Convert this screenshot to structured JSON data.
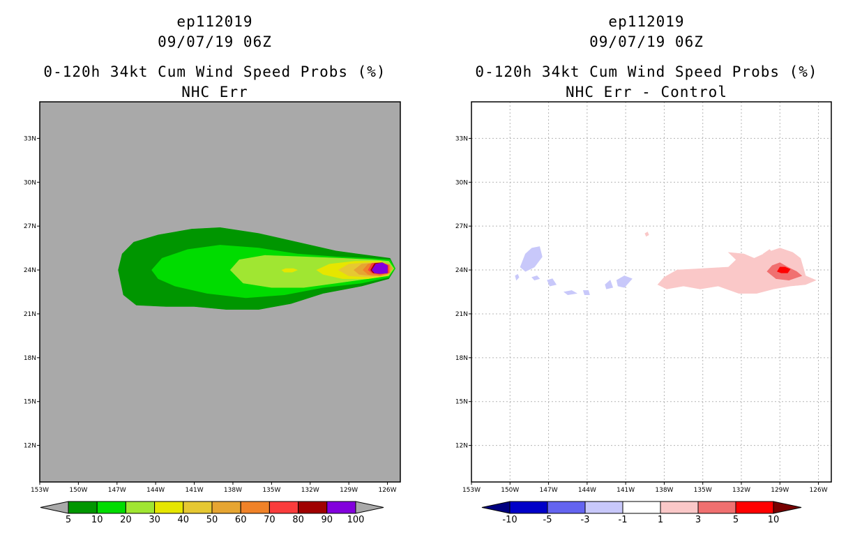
{
  "panels": [
    {
      "header": {
        "storm": "ep112019",
        "time": "09/07/19 06Z",
        "product": "0-120h 34kt Cum Wind Speed Probs (%)",
        "subtitle": "NHC Err"
      }
    },
    {
      "header": {
        "storm": "ep112019",
        "time": "09/07/19 06Z",
        "product": "0-120h 34kt Cum Wind Speed Probs (%)",
        "subtitle": "NHC Err - Control"
      }
    }
  ],
  "chart_data": [
    {
      "type": "heatmap",
      "title": "0-120h 34kt Cum Wind Speed Probs (%)",
      "subtitle": "NHC Err",
      "x_ticks": [
        "153W",
        "150W",
        "147W",
        "144W",
        "141W",
        "138W",
        "135W",
        "132W",
        "129W",
        "126W"
      ],
      "y_ticks": [
        "12N",
        "15N",
        "18N",
        "21N",
        "24N",
        "27N",
        "30N",
        "33N"
      ],
      "xlim_deg_east": [
        -153,
        -125
      ],
      "ylim_deg_north": [
        9.5,
        35.5
      ],
      "grid": false,
      "background": "#a9a9a9",
      "colorbar": {
        "labels": [
          "5",
          "10",
          "20",
          "30",
          "40",
          "50",
          "60",
          "70",
          "80",
          "90",
          "100"
        ],
        "colors": [
          "#009600",
          "#00dc00",
          "#a0e632",
          "#e6e600",
          "#e6c832",
          "#e6a532",
          "#f08228",
          "#fa3c3c",
          "#a00000",
          "#8200dc"
        ],
        "end_colors": [
          "#a9a9a9",
          "#a9a9a9"
        ]
      },
      "contours": [
        {
          "level": 5,
          "color": "#009600",
          "points": [
            [
              -146.9,
              24.0
            ],
            [
              -146.6,
              25.1
            ],
            [
              -145.7,
              25.9
            ],
            [
              -143.8,
              26.4
            ],
            [
              -141.2,
              26.8
            ],
            [
              -139.0,
              26.9
            ],
            [
              -136.0,
              26.5
            ],
            [
              -133.0,
              25.9
            ],
            [
              -130.0,
              25.3
            ],
            [
              -127.5,
              25.0
            ],
            [
              -125.8,
              24.8
            ],
            [
              -125.4,
              24.1
            ],
            [
              -125.9,
              23.4
            ],
            [
              -128.0,
              22.9
            ],
            [
              -131.0,
              22.4
            ],
            [
              -133.5,
              21.7
            ],
            [
              -136.0,
              21.3
            ],
            [
              -138.5,
              21.3
            ],
            [
              -141.0,
              21.5
            ],
            [
              -143.2,
              21.5
            ],
            [
              -145.5,
              21.6
            ],
            [
              -146.5,
              22.3
            ]
          ]
        },
        {
          "level": 10,
          "color": "#00dc00",
          "points": [
            [
              -144.3,
              24.0
            ],
            [
              -143.5,
              24.8
            ],
            [
              -141.5,
              25.4
            ],
            [
              -139.0,
              25.7
            ],
            [
              -136.0,
              25.5
            ],
            [
              -133.0,
              25.1
            ],
            [
              -130.0,
              24.9
            ],
            [
              -127.5,
              24.8
            ],
            [
              -125.8,
              24.7
            ],
            [
              -125.4,
              24.1
            ],
            [
              -125.9,
              23.5
            ],
            [
              -128.0,
              23.1
            ],
            [
              -131.0,
              22.8
            ],
            [
              -134.0,
              22.3
            ],
            [
              -137.0,
              22.1
            ],
            [
              -140.0,
              22.4
            ],
            [
              -142.5,
              22.9
            ],
            [
              -143.8,
              23.4
            ]
          ]
        },
        {
          "level": 20,
          "color": "#a0e632",
          "points": [
            [
              -138.2,
              24.0
            ],
            [
              -137.5,
              24.7
            ],
            [
              -135.5,
              25.0
            ],
            [
              -132.5,
              24.9
            ],
            [
              -129.5,
              24.8
            ],
            [
              -127.2,
              24.7
            ],
            [
              -125.9,
              24.6
            ],
            [
              -125.5,
              24.1
            ],
            [
              -125.9,
              23.6
            ],
            [
              -127.5,
              23.4
            ],
            [
              -130.0,
              23.1
            ],
            [
              -132.5,
              22.8
            ],
            [
              -135.0,
              22.8
            ],
            [
              -137.2,
              23.1
            ]
          ]
        },
        {
          "level": 30,
          "color": "#e6e600",
          "points": [
            [
              -131.5,
              24.0
            ],
            [
              -130.5,
              24.4
            ],
            [
              -128.5,
              24.6
            ],
            [
              -126.5,
              24.6
            ],
            [
              -125.6,
              24.1
            ],
            [
              -126.0,
              23.6
            ],
            [
              -127.5,
              23.4
            ],
            [
              -129.5,
              23.4
            ],
            [
              -131.0,
              23.7
            ]
          ]
        },
        {
          "level": 30,
          "color": "#e6e600",
          "points": [
            [
              -134.2,
              24.0
            ],
            [
              -133.9,
              24.1
            ],
            [
              -133.3,
              24.1
            ],
            [
              -133.0,
              24.0
            ],
            [
              -133.4,
              23.85
            ],
            [
              -134.0,
              23.85
            ]
          ]
        },
        {
          "level": 40,
          "color": "#e6c832",
          "points": [
            [
              -129.8,
              24.0
            ],
            [
              -129.0,
              24.4
            ],
            [
              -127.6,
              24.5
            ],
            [
              -126.2,
              24.5
            ],
            [
              -125.6,
              24.1
            ],
            [
              -126.1,
              23.6
            ],
            [
              -127.5,
              23.5
            ],
            [
              -129.0,
              23.6
            ]
          ]
        },
        {
          "level": 50,
          "color": "#e6a532",
          "points": [
            [
              -128.6,
              24.0
            ],
            [
              -128.0,
              24.4
            ],
            [
              -126.8,
              24.5
            ],
            [
              -125.9,
              24.4
            ],
            [
              -125.6,
              24.1
            ],
            [
              -126.0,
              23.7
            ],
            [
              -127.2,
              23.6
            ],
            [
              -128.2,
              23.7
            ]
          ]
        },
        {
          "level": 60,
          "color": "#f08228",
          "points": [
            [
              -127.9,
              24.0
            ],
            [
              -127.5,
              24.4
            ],
            [
              -126.5,
              24.5
            ],
            [
              -125.8,
              24.35
            ],
            [
              -125.8,
              23.8
            ],
            [
              -126.6,
              23.6
            ],
            [
              -127.5,
              23.7
            ]
          ]
        },
        {
          "level": 70,
          "color": "#fa3c3c",
          "points": [
            [
              -127.5,
              24.0
            ],
            [
              -127.2,
              24.45
            ],
            [
              -126.4,
              24.5
            ],
            [
              -125.9,
              24.3
            ],
            [
              -125.9,
              23.8
            ],
            [
              -126.6,
              23.7
            ],
            [
              -127.2,
              23.8
            ]
          ]
        },
        {
          "level": 80,
          "color": "#a00000",
          "points": [
            [
              -127.3,
              24.0
            ],
            [
              -127.0,
              24.45
            ],
            [
              -126.4,
              24.5
            ],
            [
              -126.0,
              24.3
            ],
            [
              -126.0,
              23.8
            ],
            [
              -126.6,
              23.75
            ],
            [
              -127.1,
              23.8
            ]
          ]
        },
        {
          "level": 90,
          "color": "#8200dc",
          "points": [
            [
              -127.2,
              24.0
            ],
            [
              -126.9,
              24.4
            ],
            [
              -126.4,
              24.5
            ],
            [
              -126.0,
              24.3
            ],
            [
              -126.0,
              23.8
            ],
            [
              -126.5,
              23.75
            ],
            [
              -127.0,
              23.8
            ]
          ]
        }
      ]
    },
    {
      "type": "heatmap",
      "title": "0-120h 34kt Cum Wind Speed Probs (%)",
      "subtitle": "NHC Err - Control",
      "x_ticks": [
        "153W",
        "150W",
        "147W",
        "144W",
        "141W",
        "138W",
        "135W",
        "132W",
        "129W",
        "126W"
      ],
      "y_ticks": [
        "12N",
        "15N",
        "18N",
        "21N",
        "24N",
        "27N",
        "30N",
        "33N"
      ],
      "xlim_deg_east": [
        -153,
        -125
      ],
      "ylim_deg_north": [
        9.5,
        35.5
      ],
      "grid": true,
      "background": "#ffffff",
      "colorbar": {
        "labels": [
          "-10",
          "-5",
          "-3",
          "-1",
          "1",
          "3",
          "5",
          "10"
        ],
        "colors": [
          "#0000c8",
          "#6464f0",
          "#c8c8fa",
          "#ffffff",
          "#fac8c8",
          "#f07070",
          "#ff0000"
        ],
        "end_colors": [
          "#000080",
          "#780000"
        ]
      },
      "contours": [
        {
          "level": -1,
          "color": "#c8c8fa",
          "points": [
            [
              -149.2,
              24.2
            ],
            [
              -148.8,
              25.1
            ],
            [
              -148.3,
              25.5
            ],
            [
              -147.7,
              25.6
            ],
            [
              -147.5,
              24.9
            ],
            [
              -148.1,
              24.2
            ],
            [
              -148.8,
              23.9
            ]
          ]
        },
        {
          "level": -1,
          "color": "#c8c8fa",
          "points": [
            [
              -149.6,
              23.6
            ],
            [
              -149.4,
              23.7
            ],
            [
              -149.3,
              23.5
            ],
            [
              -149.5,
              23.3
            ]
          ]
        },
        {
          "level": -1,
          "color": "#c8c8fa",
          "points": [
            [
              -148.3,
              23.5
            ],
            [
              -147.9,
              23.6
            ],
            [
              -147.7,
              23.4
            ],
            [
              -148.1,
              23.3
            ]
          ]
        },
        {
          "level": -1,
          "color": "#c8c8fa",
          "points": [
            [
              -147.1,
              23.3
            ],
            [
              -146.7,
              23.4
            ],
            [
              -146.4,
              23.0
            ],
            [
              -146.9,
              22.9
            ]
          ]
        },
        {
          "level": -1,
          "color": "#c8c8fa",
          "points": [
            [
              -145.8,
              22.5
            ],
            [
              -145.2,
              22.6
            ],
            [
              -144.8,
              22.4
            ],
            [
              -145.5,
              22.3
            ]
          ]
        },
        {
          "level": -1,
          "color": "#c8c8fa",
          "points": [
            [
              -144.3,
              22.6
            ],
            [
              -143.9,
              22.6
            ],
            [
              -143.8,
              22.3
            ],
            [
              -144.2,
              22.3
            ]
          ]
        },
        {
          "level": -1,
          "color": "#c8c8fa",
          "points": [
            [
              -142.6,
              23.0
            ],
            [
              -142.2,
              23.3
            ],
            [
              -142.0,
              22.8
            ],
            [
              -142.5,
              22.7
            ]
          ]
        },
        {
          "level": -1,
          "color": "#c8c8fa",
          "points": [
            [
              -141.7,
              23.3
            ],
            [
              -141.1,
              23.6
            ],
            [
              -140.5,
              23.4
            ],
            [
              -141.1,
              22.8
            ],
            [
              -141.6,
              22.9
            ]
          ]
        },
        {
          "level": 1,
          "color": "#fac8c8",
          "points": [
            [
              -138.5,
              23.0
            ],
            [
              -138.0,
              23.5
            ],
            [
              -137.0,
              24.0
            ],
            [
              -135.0,
              24.1
            ],
            [
              -133.0,
              24.2
            ],
            [
              -132.4,
              24.7
            ],
            [
              -133.0,
              25.2
            ],
            [
              -131.8,
              25.1
            ],
            [
              -131.0,
              24.8
            ],
            [
              -130.0,
              25.2
            ],
            [
              -129.0,
              25.5
            ],
            [
              -128.0,
              25.2
            ],
            [
              -127.4,
              24.8
            ],
            [
              -127.2,
              24.2
            ],
            [
              -127.0,
              23.6
            ],
            [
              -126.2,
              23.3
            ],
            [
              -127.0,
              23.0
            ],
            [
              -128.2,
              22.9
            ],
            [
              -129.5,
              22.7
            ],
            [
              -130.8,
              22.4
            ],
            [
              -132.2,
              22.4
            ],
            [
              -133.8,
              22.9
            ],
            [
              -135.2,
              22.7
            ],
            [
              -136.5,
              22.9
            ],
            [
              -137.8,
              22.7
            ]
          ]
        },
        {
          "level": 1,
          "color": "#fac8c8",
          "points": [
            [
              -130.3,
              25.1
            ],
            [
              -129.8,
              25.4
            ],
            [
              -129.4,
              25.0
            ],
            [
              -129.9,
              24.8
            ]
          ]
        },
        {
          "level": 1,
          "color": "#fac8c8",
          "points": [
            [
              -139.5,
              26.5
            ],
            [
              -139.3,
              26.6
            ],
            [
              -139.2,
              26.4
            ],
            [
              -139.4,
              26.3
            ]
          ]
        },
        {
          "level": 3,
          "color": "#f07070",
          "points": [
            [
              -130.0,
              23.9
            ],
            [
              -129.6,
              24.3
            ],
            [
              -129.0,
              24.5
            ],
            [
              -128.4,
              24.2
            ],
            [
              -127.7,
              23.9
            ],
            [
              -127.3,
              23.6
            ],
            [
              -128.3,
              23.3
            ],
            [
              -129.3,
              23.4
            ]
          ]
        },
        {
          "level": 5,
          "color": "#ff0000",
          "points": [
            [
              -129.2,
              23.9
            ],
            [
              -129.0,
              24.2
            ],
            [
              -128.6,
              24.2
            ],
            [
              -128.2,
              24.05
            ],
            [
              -128.4,
              23.8
            ],
            [
              -128.9,
              23.8
            ]
          ]
        }
      ]
    }
  ]
}
